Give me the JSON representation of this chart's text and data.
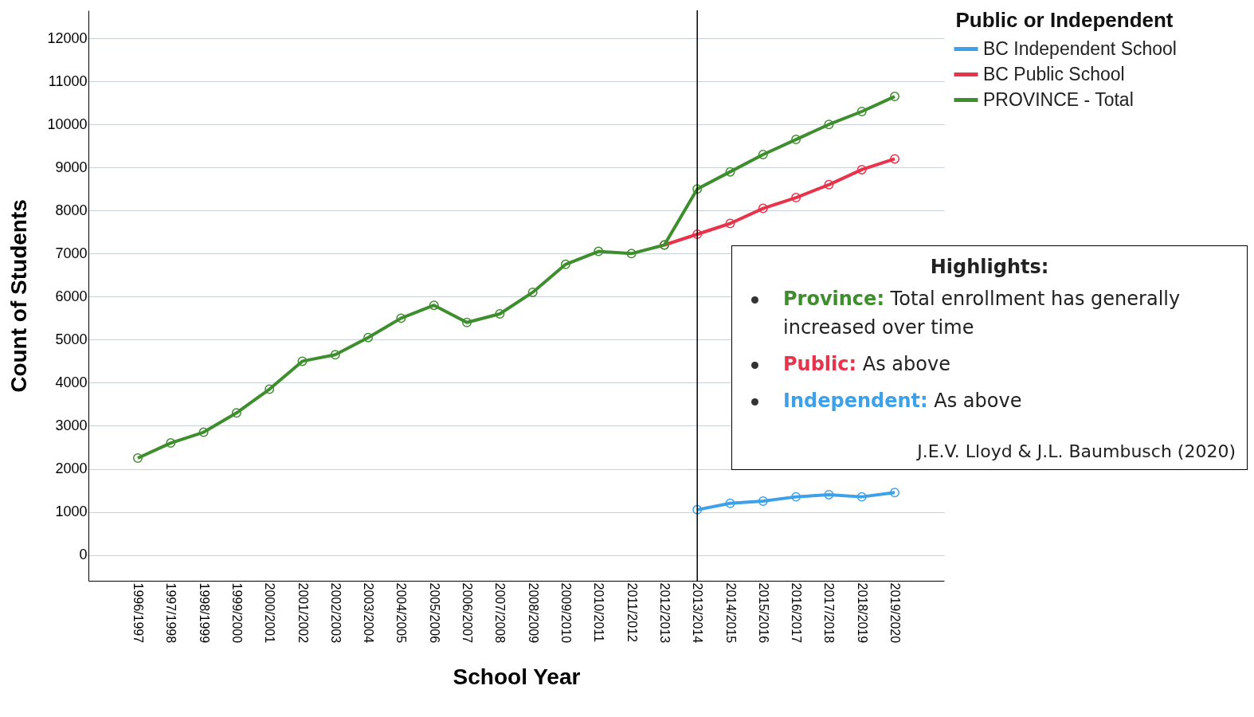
{
  "chart_data": {
    "type": "line",
    "xlabel": "School Year",
    "ylabel": "Count of Students",
    "legend_title": "Public or Independent",
    "categories": [
      "1996/1997",
      "1997/1998",
      "1998/1999",
      "1999/2000",
      "2000/2001",
      "2001/2002",
      "2002/2003",
      "2003/2004",
      "2004/2005",
      "2005/2006",
      "2006/2007",
      "2007/2008",
      "2008/2009",
      "2009/2010",
      "2010/2011",
      "2011/2012",
      "2012/2013",
      "2013/2014",
      "2014/2015",
      "2015/2016",
      "2016/2017",
      "2017/2018",
      "2018/2019",
      "2019/2020"
    ],
    "series": [
      {
        "name": "BC Independent School",
        "color": "#3da0e8",
        "values": [
          null,
          null,
          null,
          null,
          null,
          null,
          null,
          null,
          null,
          null,
          null,
          null,
          null,
          null,
          null,
          null,
          null,
          1050,
          1200,
          1250,
          1350,
          1400,
          1350,
          1450
        ]
      },
      {
        "name": "BC Public School",
        "color": "#e8334a",
        "values": [
          null,
          null,
          null,
          null,
          null,
          null,
          null,
          null,
          null,
          null,
          null,
          null,
          null,
          null,
          null,
          null,
          7200,
          7450,
          7700,
          8050,
          8300,
          8600,
          8950,
          9200
        ]
      },
      {
        "name": "PROVINCE - Total",
        "color": "#3e8e2e",
        "values": [
          2250,
          2600,
          2850,
          3300,
          3850,
          4500,
          4650,
          5050,
          5500,
          5800,
          5400,
          5600,
          6100,
          6750,
          7050,
          7000,
          7200,
          8500,
          8900,
          9300,
          9650,
          10000,
          10300,
          10650
        ]
      }
    ],
    "ylim": [
      -600,
      12650
    ],
    "yticks": [
      0,
      1000,
      2000,
      3000,
      4000,
      5000,
      6000,
      7000,
      8000,
      9000,
      10000,
      11000,
      12000
    ],
    "grid": "y",
    "legend": "top right",
    "marker": "circle",
    "line_style": "solid",
    "ref_lines": [
      {
        "axis": "x",
        "value": "2013/2014",
        "color": "#000000"
      }
    ],
    "annotations": [
      "Highlights:",
      "Province: Total enrollment has generally increased over time",
      "Public: As above",
      "Independent: As above",
      "J.E.V. Lloyd & J.L. Baumbusch (2020)"
    ]
  }
}
